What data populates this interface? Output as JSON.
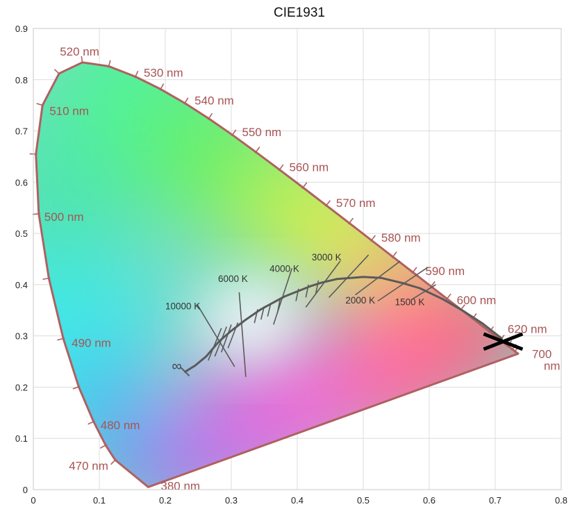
{
  "chart_data": {
    "type": "scatter",
    "title": "CIE1931",
    "xlabel": "",
    "ylabel": "",
    "xlim": [
      0,
      0.8
    ],
    "ylim": [
      0,
      0.9
    ],
    "x_ticks": [
      "0",
      "0.1",
      "0.2",
      "0.3",
      "0.4",
      "0.5",
      "0.6",
      "0.7",
      "0.8"
    ],
    "y_ticks": [
      "0",
      "0.1",
      "0.2",
      "0.3",
      "0.4",
      "0.5",
      "0.6",
      "0.7",
      "0.8",
      "0.9"
    ],
    "grid": true,
    "spectral_locus": [
      {
        "nm": 380,
        "x": 0.1741,
        "y": 0.005
      },
      {
        "nm": 470,
        "x": 0.1241,
        "y": 0.0578
      },
      {
        "nm": 475,
        "x": 0.1096,
        "y": 0.0868
      },
      {
        "nm": 480,
        "x": 0.0913,
        "y": 0.1327
      },
      {
        "nm": 485,
        "x": 0.0687,
        "y": 0.2007
      },
      {
        "nm": 490,
        "x": 0.0454,
        "y": 0.295
      },
      {
        "nm": 495,
        "x": 0.0235,
        "y": 0.4127
      },
      {
        "nm": 500,
        "x": 0.0082,
        "y": 0.5384
      },
      {
        "nm": 505,
        "x": 0.0039,
        "y": 0.6548
      },
      {
        "nm": 510,
        "x": 0.0139,
        "y": 0.7502
      },
      {
        "nm": 515,
        "x": 0.0389,
        "y": 0.812
      },
      {
        "nm": 520,
        "x": 0.0743,
        "y": 0.8338
      },
      {
        "nm": 525,
        "x": 0.1142,
        "y": 0.8262
      },
      {
        "nm": 530,
        "x": 0.1547,
        "y": 0.8059
      },
      {
        "nm": 535,
        "x": 0.1929,
        "y": 0.7816
      },
      {
        "nm": 540,
        "x": 0.2296,
        "y": 0.7543
      },
      {
        "nm": 545,
        "x": 0.2658,
        "y": 0.7243
      },
      {
        "nm": 550,
        "x": 0.3016,
        "y": 0.6923
      },
      {
        "nm": 555,
        "x": 0.3373,
        "y": 0.6589
      },
      {
        "nm": 560,
        "x": 0.3731,
        "y": 0.6245
      },
      {
        "nm": 565,
        "x": 0.4087,
        "y": 0.5896
      },
      {
        "nm": 570,
        "x": 0.4441,
        "y": 0.5547
      },
      {
        "nm": 575,
        "x": 0.4788,
        "y": 0.5202
      },
      {
        "nm": 580,
        "x": 0.5125,
        "y": 0.4866
      },
      {
        "nm": 585,
        "x": 0.5448,
        "y": 0.4544
      },
      {
        "nm": 590,
        "x": 0.5752,
        "y": 0.4242
      },
      {
        "nm": 595,
        "x": 0.6029,
        "y": 0.3965
      },
      {
        "nm": 600,
        "x": 0.627,
        "y": 0.3725
      },
      {
        "nm": 605,
        "x": 0.6482,
        "y": 0.3514
      },
      {
        "nm": 610,
        "x": 0.6658,
        "y": 0.334
      },
      {
        "nm": 620,
        "x": 0.6915,
        "y": 0.3083
      },
      {
        "nm": 630,
        "x": 0.7079,
        "y": 0.292
      },
      {
        "nm": 640,
        "x": 0.719,
        "y": 0.2809
      },
      {
        "nm": 650,
        "x": 0.726,
        "y": 0.274
      },
      {
        "nm": 660,
        "x": 0.73,
        "y": 0.27
      },
      {
        "nm": 680,
        "x": 0.7334,
        "y": 0.2666
      },
      {
        "nm": 700,
        "x": 0.7347,
        "y": 0.2653
      }
    ],
    "wavelength_labels": [
      {
        "text": "380 nm",
        "nm": 380
      },
      {
        "text": "470 nm",
        "nm": 470
      },
      {
        "text": "480 nm",
        "nm": 480
      },
      {
        "text": "490 nm",
        "nm": 490
      },
      {
        "text": "500 nm",
        "nm": 500
      },
      {
        "text": "510 nm",
        "nm": 510
      },
      {
        "text": "520 nm",
        "nm": 520
      },
      {
        "text": "530 nm",
        "nm": 530
      },
      {
        "text": "540 nm",
        "nm": 540
      },
      {
        "text": "550 nm",
        "nm": 550
      },
      {
        "text": "560 nm",
        "nm": 560
      },
      {
        "text": "570 nm",
        "nm": 570
      },
      {
        "text": "580 nm",
        "nm": 580
      },
      {
        "text": "590 nm",
        "nm": 590
      },
      {
        "text": "600 nm",
        "nm": 600
      },
      {
        "text": "620 nm",
        "nm": 620
      },
      {
        "text": "700 nm",
        "nm": 700
      }
    ],
    "planckian_locus": [
      {
        "x": 0.23,
        "y": 0.23
      },
      {
        "x": 0.245,
        "y": 0.242
      },
      {
        "x": 0.262,
        "y": 0.26
      },
      {
        "x": 0.2807,
        "y": 0.2883
      },
      {
        "x": 0.3,
        "y": 0.31
      },
      {
        "x": 0.3221,
        "y": 0.3318
      },
      {
        "x": 0.345,
        "y": 0.352
      },
      {
        "x": 0.3805,
        "y": 0.3768
      },
      {
        "x": 0.42,
        "y": 0.397
      },
      {
        "x": 0.4369,
        "y": 0.4041
      },
      {
        "x": 0.46,
        "y": 0.411
      },
      {
        "x": 0.5,
        "y": 0.415
      },
      {
        "x": 0.5267,
        "y": 0.4133
      },
      {
        "x": 0.56,
        "y": 0.403
      },
      {
        "x": 0.5857,
        "y": 0.3931
      },
      {
        "x": 0.62,
        "y": 0.372
      },
      {
        "x": 0.65,
        "y": 0.35
      },
      {
        "x": 0.68,
        "y": 0.325
      },
      {
        "x": 0.71,
        "y": 0.295
      }
    ],
    "isotherms": [
      {
        "x1": 0.248,
        "y1": 0.362,
        "x2": 0.305,
        "y2": 0.24,
        "label": "10000 K"
      },
      {
        "x1": 0.265,
        "y1": 0.252,
        "x2": 0.285,
        "y2": 0.315
      },
      {
        "x1": 0.275,
        "y1": 0.26,
        "x2": 0.293,
        "y2": 0.318
      },
      {
        "x1": 0.285,
        "y1": 0.268,
        "x2": 0.3,
        "y2": 0.322
      },
      {
        "x1": 0.295,
        "y1": 0.276,
        "x2": 0.31,
        "y2": 0.326
      },
      {
        "x1": 0.322,
        "y1": 0.22,
        "x2": 0.312,
        "y2": 0.385,
        "label": "6000 K"
      },
      {
        "x1": 0.335,
        "y1": 0.325,
        "x2": 0.34,
        "y2": 0.352
      },
      {
        "x1": 0.345,
        "y1": 0.332,
        "x2": 0.35,
        "y2": 0.358
      },
      {
        "x1": 0.355,
        "y1": 0.338,
        "x2": 0.36,
        "y2": 0.364
      },
      {
        "x1": 0.37,
        "y1": 0.345,
        "x2": 0.374,
        "y2": 0.372
      },
      {
        "x1": 0.364,
        "y1": 0.322,
        "x2": 0.392,
        "y2": 0.432,
        "label": "4000 K"
      },
      {
        "x1": 0.398,
        "y1": 0.368,
        "x2": 0.402,
        "y2": 0.392
      },
      {
        "x1": 0.413,
        "y1": 0.375,
        "x2": 0.417,
        "y2": 0.4
      },
      {
        "x1": 0.428,
        "y1": 0.382,
        "x2": 0.432,
        "y2": 0.408
      },
      {
        "x1": 0.413,
        "y1": 0.356,
        "x2": 0.465,
        "y2": 0.446,
        "label": "3000 K"
      },
      {
        "x1": 0.448,
        "y1": 0.375,
        "x2": 0.508,
        "y2": 0.458,
        "label": "2000 K"
      },
      {
        "x1": 0.488,
        "y1": 0.38,
        "x2": 0.556,
        "y2": 0.446
      },
      {
        "x1": 0.522,
        "y1": 0.368,
        "x2": 0.598,
        "y2": 0.434,
        "label": "1500 K"
      },
      {
        "x1": 0.572,
        "y1": 0.37,
        "x2": 0.61,
        "y2": 0.4
      }
    ],
    "isotherm_label_positions": {
      "10000 K": {
        "x": 0.2,
        "y": 0.352
      },
      "6000 K": {
        "x": 0.28,
        "y": 0.405
      },
      "4000 K": {
        "x": 0.358,
        "y": 0.425
      },
      "3000 K": {
        "x": 0.422,
        "y": 0.447
      },
      "2000 K": {
        "x": 0.473,
        "y": 0.363
      },
      "1500 K": {
        "x": 0.548,
        "y": 0.36
      }
    },
    "infinity_symbol": "∞",
    "marker": {
      "type": "X",
      "x": 0.712,
      "y": 0.289
    },
    "colors": {
      "locus_stroke": "#b06060",
      "label_text": "#a85353",
      "planck_stroke": "#5a5a5a",
      "marker": "#000000"
    }
  }
}
